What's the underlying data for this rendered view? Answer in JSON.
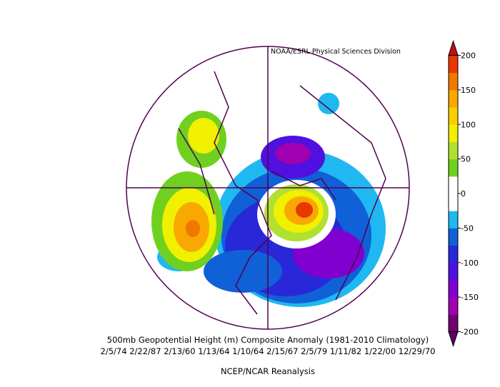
{
  "credit": "NOAA/ESRL Physical Sciences Division",
  "title": "500mb Geopotential Height (m) Composite Anomaly (1981-2010 Climatology)",
  "dates": "2/5/74 2/22/87 2/13/60 1/13/64 1/10/64 2/15/67 2/5/79 1/11/82 1/22/00 12/29/70",
  "source": "NCEP/NCAR Reanalysis",
  "colorbar": {
    "lim": [
      -200,
      200
    ],
    "ticks": [
      200,
      150,
      100,
      50,
      0,
      -50,
      -100,
      -150,
      -200
    ],
    "colors": [
      "#700070",
      "#a000b0",
      "#8000d0",
      "#5010e0",
      "#2828d8",
      "#1060d8",
      "#20b8f0",
      "#ffffff",
      "#ffffff",
      "#70d020",
      "#b0e030",
      "#f0f000",
      "#f8d000",
      "#f8a800",
      "#f07800",
      "#e83800"
    ],
    "over": "#c01010",
    "under": "#600060"
  }
}
